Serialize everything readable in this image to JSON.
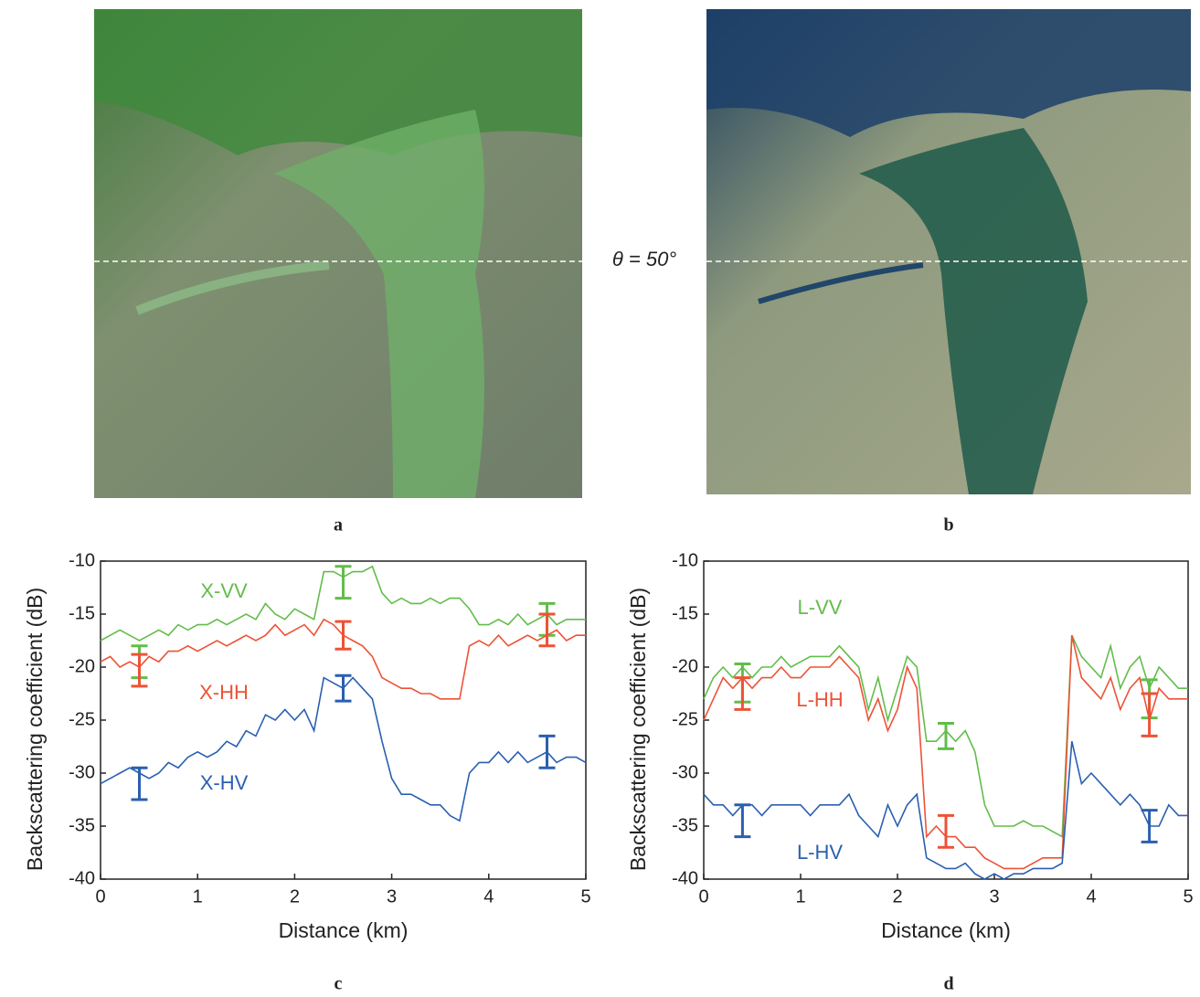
{
  "figure": {
    "panel_labels": [
      "a",
      "b",
      "c",
      "d"
    ],
    "image_annotation": "θ = 50°"
  },
  "chart_data": [
    {
      "type": "line",
      "x_label": "Distance (km)",
      "y_label": "Backscattering coefficient (dB)",
      "xlim": [
        0,
        5
      ],
      "ylim": [
        -40,
        -10
      ],
      "xticks": [
        0,
        1,
        2,
        3,
        4,
        5
      ],
      "yticks": [
        -40,
        -35,
        -30,
        -25,
        -20,
        -15,
        -10
      ],
      "x": [
        0,
        0.1,
        0.2,
        0.3,
        0.4,
        0.5,
        0.6,
        0.7,
        0.8,
        0.9,
        1,
        1.1,
        1.2,
        1.3,
        1.4,
        1.5,
        1.6,
        1.7,
        1.8,
        1.9,
        2,
        2.1,
        2.2,
        2.3,
        2.4,
        2.5,
        2.6,
        2.7,
        2.8,
        2.9,
        3,
        3.1,
        3.2,
        3.3,
        3.4,
        3.5,
        3.6,
        3.7,
        3.8,
        3.9,
        4,
        4.1,
        4.2,
        4.3,
        4.4,
        4.5,
        4.6,
        4.7,
        4.8,
        4.9,
        5
      ],
      "series": [
        {
          "name": "X-VV",
          "color": "#62bd4a",
          "values": [
            -17.5,
            -17,
            -16.5,
            -17,
            -17.5,
            -17,
            -16.5,
            -17,
            -16,
            -16.5,
            -16,
            -16,
            -15.5,
            -16,
            -15.5,
            -15,
            -15.5,
            -14,
            -15,
            -15.5,
            -14.5,
            -15,
            -15.5,
            -11,
            -11,
            -11.5,
            -11,
            -11,
            -10.5,
            -13,
            -14,
            -13.5,
            -14,
            -14,
            -13.5,
            -14,
            -13.5,
            -13.5,
            -14.5,
            -16,
            -16,
            -15.5,
            -16,
            -15,
            -16,
            -15.5,
            -15,
            -16,
            -15.5,
            -15.5,
            -15.5
          ],
          "error_bars": [
            {
              "x": 0.4,
              "value": -19.5,
              "error": 1.5
            },
            {
              "x": 2.5,
              "value": -12,
              "error": 1.5
            },
            {
              "x": 4.6,
              "value": -15.5,
              "error": 1.5
            }
          ]
        },
        {
          "name": "X-HH",
          "color": "#ee5236",
          "values": [
            -19.5,
            -19,
            -20,
            -19.5,
            -20,
            -19,
            -19.5,
            -18.5,
            -18.5,
            -18,
            -18.5,
            -18,
            -17.5,
            -18,
            -17.5,
            -17,
            -17.5,
            -17,
            -16,
            -17,
            -16.5,
            -16,
            -17,
            -15.5,
            -16,
            -17,
            -17.5,
            -18,
            -19,
            -21,
            -21.5,
            -22,
            -22,
            -22.5,
            -22.5,
            -23,
            -23,
            -23,
            -18,
            -17.5,
            -18,
            -17,
            -18,
            -17.5,
            -17,
            -17.5,
            -17,
            -16.5,
            -17.5,
            -17,
            -17
          ],
          "error_bars": [
            {
              "x": 0.4,
              "value": -20.3,
              "error": 1.5
            },
            {
              "x": 2.5,
              "value": -17,
              "error": 1.3
            },
            {
              "x": 4.6,
              "value": -16.5,
              "error": 1.5
            }
          ]
        },
        {
          "name": "X-HV",
          "color": "#2a5fb0",
          "values": [
            -31,
            -30.5,
            -30,
            -29.5,
            -30,
            -30.5,
            -30,
            -29,
            -29.5,
            -28.5,
            -28,
            -28.5,
            -28,
            -27,
            -27.5,
            -26,
            -26.5,
            -24.5,
            -25,
            -24,
            -25,
            -24,
            -26,
            -21,
            -21.5,
            -22,
            -21,
            -22,
            -23,
            -27,
            -30.5,
            -32,
            -32,
            -32.5,
            -33,
            -33,
            -34,
            -34.5,
            -30,
            -29,
            -29,
            -28,
            -29,
            -28,
            -29,
            -28.5,
            -28,
            -29,
            -28.5,
            -28.5,
            -29
          ],
          "error_bars": [
            {
              "x": 0.4,
              "value": -31,
              "error": 1.5
            },
            {
              "x": 2.5,
              "value": -22,
              "error": 1.2
            },
            {
              "x": 4.6,
              "value": -28,
              "error": 1.5
            }
          ]
        }
      ]
    },
    {
      "type": "line",
      "x_label": "Distance (km)",
      "y_label": "Backscattering coefficient (dB)",
      "xlim": [
        0,
        5
      ],
      "ylim": [
        -40,
        -10
      ],
      "xticks": [
        0,
        1,
        2,
        3,
        4,
        5
      ],
      "yticks": [
        -40,
        -35,
        -30,
        -25,
        -20,
        -15,
        -10
      ],
      "x": [
        0,
        0.1,
        0.2,
        0.3,
        0.4,
        0.5,
        0.6,
        0.7,
        0.8,
        0.9,
        1,
        1.1,
        1.2,
        1.3,
        1.4,
        1.5,
        1.6,
        1.7,
        1.8,
        1.9,
        2,
        2.1,
        2.2,
        2.3,
        2.4,
        2.5,
        2.6,
        2.7,
        2.8,
        2.9,
        3,
        3.1,
        3.2,
        3.3,
        3.4,
        3.5,
        3.6,
        3.7,
        3.8,
        3.9,
        4,
        4.1,
        4.2,
        4.3,
        4.4,
        4.5,
        4.6,
        4.7,
        4.8,
        4.9,
        5
      ],
      "series": [
        {
          "name": "L-VV",
          "color": "#62bd4a",
          "values": [
            -23,
            -21,
            -20,
            -21,
            -20,
            -21,
            -20,
            -20,
            -19,
            -20,
            -19.5,
            -19,
            -19,
            -19,
            -18,
            -19,
            -20,
            -24,
            -21,
            -25,
            -22,
            -19,
            -20,
            -27,
            -27,
            -26,
            -27,
            -26,
            -28,
            -33,
            -35,
            -35,
            -35,
            -34.5,
            -35,
            -35,
            -35.5,
            -36,
            -17,
            -19,
            -20,
            -21,
            -18,
            -22,
            -20,
            -19,
            -22,
            -20,
            -21,
            -22,
            -22
          ],
          "error_bars": [
            {
              "x": 0.4,
              "value": -21.5,
              "error": 1.8
            },
            {
              "x": 2.5,
              "value": -26.5,
              "error": 1.2
            },
            {
              "x": 4.6,
              "value": -23,
              "error": 1.8
            }
          ]
        },
        {
          "name": "L-HH",
          "color": "#ee5236",
          "values": [
            -25,
            -23,
            -21,
            -22,
            -21,
            -22,
            -21,
            -21,
            -20,
            -21,
            -21,
            -20,
            -20,
            -20,
            -19,
            -20,
            -21,
            -25,
            -23,
            -26,
            -24,
            -20,
            -22,
            -36,
            -35,
            -36,
            -36,
            -37,
            -37,
            -38,
            -38.5,
            -39,
            -39,
            -39,
            -38.5,
            -38,
            -38,
            -38,
            -17,
            -21,
            -22,
            -23,
            -21,
            -24,
            -22,
            -21,
            -25,
            -22,
            -23,
            -23,
            -23
          ],
          "error_bars": [
            {
              "x": 0.4,
              "value": -22.5,
              "error": 1.5
            },
            {
              "x": 2.5,
              "value": -35.5,
              "error": 1.5
            },
            {
              "x": 4.6,
              "value": -24.5,
              "error": 2
            }
          ]
        },
        {
          "name": "L-HV",
          "color": "#2a5fb0",
          "values": [
            -32,
            -33,
            -33,
            -34,
            -33,
            -33,
            -34,
            -33,
            -33,
            -33,
            -33,
            -34,
            -33,
            -33,
            -33,
            -32,
            -34,
            -35,
            -36,
            -33,
            -35,
            -33,
            -32,
            -38,
            -38.5,
            -39,
            -39,
            -38.5,
            -39.5,
            -40,
            -39.5,
            -40,
            -39.5,
            -39.5,
            -39,
            -39,
            -39,
            -38.5,
            -27,
            -31,
            -30,
            -31,
            -32,
            -33,
            -32,
            -33,
            -35,
            -35,
            -33,
            -34,
            -34
          ],
          "error_bars": [
            {
              "x": 0.4,
              "value": -34.5,
              "error": 1.5
            },
            {
              "x": 4.6,
              "value": -35,
              "error": 1.5
            }
          ]
        }
      ]
    }
  ]
}
